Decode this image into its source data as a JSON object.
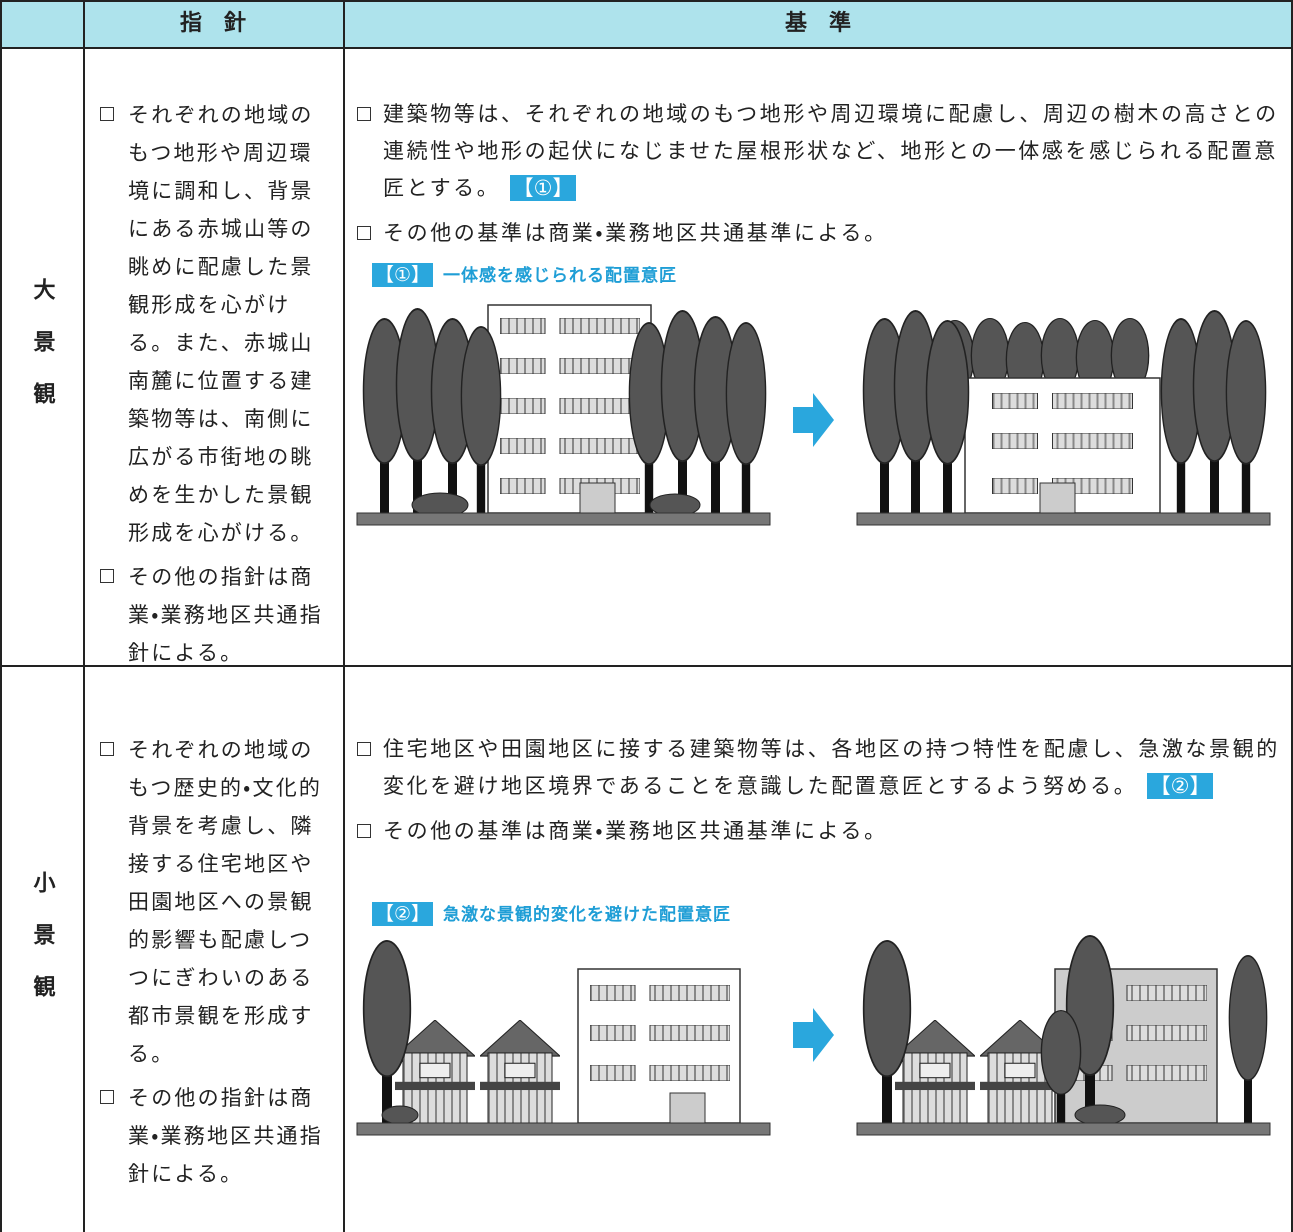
{
  "table": {
    "header": {
      "guideline": "指　針",
      "standard": "基　準"
    },
    "rows": [
      {
        "label": "大景観",
        "guidelines": [
          "それぞれの地域のもつ地形や周辺環境に調和し、背景にある赤城山等の眺めに配慮した景観形成を心がける。また、赤城山南麓に位置する建築物等は、南側に広がる市街地の眺めを生かした景観形成を心がける。",
          "その他の指針は商業・業務地区共通指針による。"
        ],
        "standards": [
          {
            "text": "建築物等は、それぞれの地域のもつ地形や周辺環境に配慮し、周辺の樹木の高さとの連続性や地形の起伏になじませた屋根形状など、地形との一体感を感じられる配置意匠とする。",
            "tag": "【①】"
          },
          {
            "text": "その他の基準は商業・業務地区共通基準による。"
          }
        ],
        "figure": {
          "tag": "【①】",
          "caption": "一体感を感じられる配置意匠"
        }
      },
      {
        "label": "小景観",
        "guidelines": [
          "それぞれの地域のもつ歴史的・文化的背景を考慮し、隣接する住宅地区や田園地区への景観的影響も配慮しつつにぎわいのある都市景観を形成する。",
          "その他の指針は商業・業務地区共通指針による。"
        ],
        "standards": [
          {
            "text": "住宅地区や田園地区に接する建築物等は、各地区の持つ特性を配慮し、急激な景観的変化を避け地区境界であることを意識した配置意匠とするよう努める。",
            "tag": "【②】"
          },
          {
            "text": "その他の基準は商業・業務地区共通基準による。"
          }
        ],
        "figure": {
          "tag": "【②】",
          "caption": "急激な景観的変化を避けた配置意匠"
        }
      }
    ]
  }
}
